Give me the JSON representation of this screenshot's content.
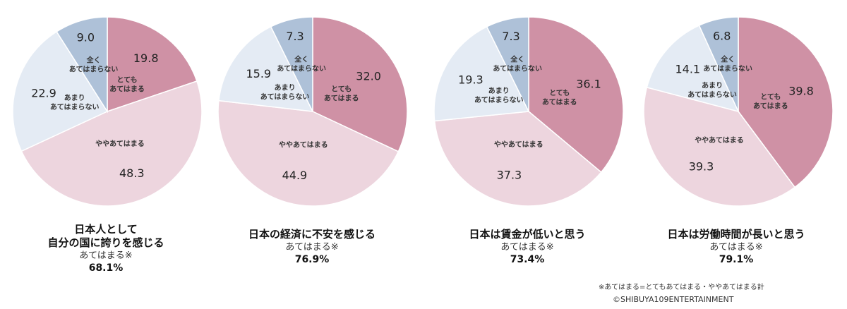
{
  "chart_data": [
    {
      "type": "pie",
      "title_lines": [
        "日本人として",
        "自分の国に誇りを感じる"
      ],
      "subtitle": "あてはまる※",
      "summary": "68.1%",
      "slices": [
        {
          "label": [
            "とても",
            "あてはまる"
          ],
          "value": 19.8,
          "color": "#cf91a5"
        },
        {
          "label": [
            "ややあてはまる"
          ],
          "value": 48.3,
          "color": "#edd5de"
        },
        {
          "label": [
            "あまり",
            "あてはまらない"
          ],
          "value": 22.9,
          "color": "#e4ebf4"
        },
        {
          "label": [
            "全く",
            "あてはまらない"
          ],
          "value": 9.0,
          "color": "#aec1d8"
        }
      ]
    },
    {
      "type": "pie",
      "title_lines": [
        "日本の経済に不安を感じる"
      ],
      "subtitle": "あてはまる※",
      "summary": "76.9%",
      "slices": [
        {
          "label": [
            "とても",
            "あてはまる"
          ],
          "value": 32.0,
          "color": "#cf91a5"
        },
        {
          "label": [
            "ややあてはまる"
          ],
          "value": 44.9,
          "color": "#edd5de"
        },
        {
          "label": [
            "あまり",
            "あてはまらない"
          ],
          "value": 15.9,
          "color": "#e4ebf4"
        },
        {
          "label": [
            "全く",
            "あてはまらない"
          ],
          "value": 7.3,
          "color": "#aec1d8"
        }
      ]
    },
    {
      "type": "pie",
      "title_lines": [
        "日本は賃金が低いと思う"
      ],
      "subtitle": "あてはまる※",
      "summary": "73.4%",
      "slices": [
        {
          "label": [
            "とても",
            "あてはまる"
          ],
          "value": 36.1,
          "color": "#cf91a5"
        },
        {
          "label": [
            "ややあてはまる"
          ],
          "value": 37.3,
          "color": "#edd5de"
        },
        {
          "label": [
            "あまり",
            "あてはまらない"
          ],
          "value": 19.3,
          "color": "#e4ebf4"
        },
        {
          "label": [
            "全く",
            "あてはまらない"
          ],
          "value": 7.3,
          "color": "#aec1d8"
        }
      ]
    },
    {
      "type": "pie",
      "title_lines": [
        "日本は労働時間が長いと思う"
      ],
      "subtitle": "あてはまる※",
      "summary": "79.1%",
      "slices": [
        {
          "label": [
            "とても",
            "あてはまる"
          ],
          "value": 39.8,
          "color": "#cf91a5"
        },
        {
          "label": [
            "ややあてはまる"
          ],
          "value": 39.3,
          "color": "#edd5de"
        },
        {
          "label": [
            "あまり",
            "あてはまらない"
          ],
          "value": 14.1,
          "color": "#e4ebf4"
        },
        {
          "label": [
            "全く",
            "あてはまらない"
          ],
          "value": 6.8,
          "color": "#aec1d8"
        }
      ]
    }
  ],
  "footnote": "※あてはまる=とてもあてはまる・ややあてはまる計",
  "copyright": "©SHIBUYA109ENTERTAINMENT"
}
